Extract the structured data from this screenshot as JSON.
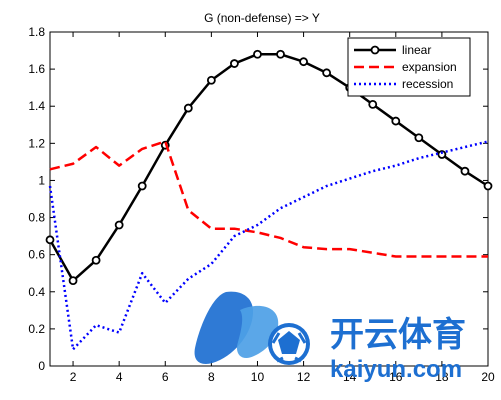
{
  "chart_data": {
    "type": "line",
    "title": "G (non-defense) => Y",
    "xlabel": "",
    "ylabel": "",
    "xlim": [
      1,
      20
    ],
    "ylim": [
      0,
      1.8
    ],
    "xticks": [
      2,
      4,
      6,
      8,
      10,
      12,
      14,
      16,
      18,
      20
    ],
    "yticks": [
      0,
      0.2,
      0.4,
      0.6,
      0.8,
      1,
      1.2,
      1.4,
      1.6,
      1.8
    ],
    "grid": false,
    "legend_position": "top-right",
    "x": [
      1,
      2,
      3,
      4,
      5,
      6,
      7,
      8,
      9,
      10,
      11,
      12,
      13,
      14,
      15,
      16,
      17,
      18,
      19,
      20
    ],
    "series": [
      {
        "name": "linear",
        "color": "#000000",
        "line_style": "solid",
        "marker": "circle",
        "values": [
          0.68,
          0.46,
          0.57,
          0.76,
          0.97,
          1.19,
          1.39,
          1.54,
          1.63,
          1.68,
          1.68,
          1.64,
          1.58,
          1.5,
          1.41,
          1.32,
          1.23,
          1.14,
          1.05,
          0.97
        ]
      },
      {
        "name": "expansion",
        "color": "#ff0000",
        "line_style": "dashed",
        "marker": "none",
        "values": [
          1.06,
          1.09,
          1.18,
          1.08,
          1.17,
          1.21,
          0.84,
          0.74,
          0.74,
          0.72,
          0.69,
          0.64,
          0.63,
          0.63,
          0.61,
          0.59,
          0.59,
          0.59,
          0.59,
          0.59
        ]
      },
      {
        "name": "recession",
        "color": "#0000ff",
        "line_style": "dotted",
        "marker": "none",
        "values": [
          0.97,
          0.09,
          0.22,
          0.18,
          0.5,
          0.34,
          0.47,
          0.55,
          0.7,
          0.76,
          0.85,
          0.91,
          0.97,
          1.01,
          1.05,
          1.08,
          1.12,
          1.15,
          1.18,
          1.21
        ]
      }
    ]
  },
  "watermark": {
    "text_cn": "开云体育",
    "text_en": "kaiyun.com",
    "colors": {
      "primary": "#1d6fd1",
      "light": "#5aa8ea"
    }
  }
}
